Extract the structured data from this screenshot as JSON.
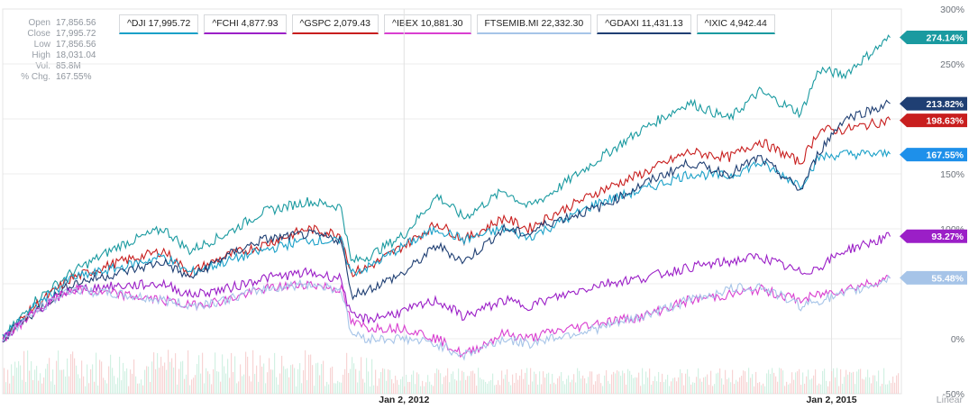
{
  "info_panel": {
    "rows": [
      {
        "label": "Open",
        "value": "17,856.56"
      },
      {
        "label": "Close",
        "value": "17,995.72"
      },
      {
        "label": "Low",
        "value": "17,856.56"
      },
      {
        "label": "High",
        "value": "18,031.04"
      },
      {
        "label": "Vol.",
        "value": "85.8M"
      },
      {
        "label": "% Chg.",
        "value": "167.55%"
      }
    ]
  },
  "legend": [
    {
      "label": "^DJI 17,995.72",
      "color": "#1aa0c8"
    },
    {
      "label": "^FCHI 4,877.93",
      "color": "#9b1fc7"
    },
    {
      "label": "^GSPC 2,079.43",
      "color": "#c81e1e"
    },
    {
      "label": "^IBEX 10,881.30",
      "color": "#d93fd0"
    },
    {
      "label": "FTSEMIB.MI 22,332.30",
      "color": "#a6c4e8"
    },
    {
      "label": "^GDAXI 11,431.13",
      "color": "#1f3f73"
    },
    {
      "label": "^IXIC 4,942.44",
      "color": "#1a9aa0"
    }
  ],
  "chart_data": {
    "type": "line",
    "y_axis_labels": [
      "300%",
      "250%",
      "150%",
      "100%",
      "0%",
      "-50%"
    ],
    "x_axis_labels": [
      "Jan 2, 2012",
      "Jan 2, 2015"
    ],
    "scale_label": "Linear",
    "ylim": [
      -50,
      300
    ],
    "x_range": [
      "2009-03-09",
      "2015-06-30"
    ],
    "grid": true,
    "series": [
      {
        "name": "^IXIC",
        "color": "#1a9aa0",
        "dates": [
          "2009-03-09",
          "2009-06-01",
          "2009-09-01",
          "2010-01-04",
          "2010-04-26",
          "2010-07-01",
          "2010-10-01",
          "2011-01-03",
          "2011-04-29",
          "2011-07-25",
          "2011-08-19",
          "2011-10-03",
          "2012-01-03",
          "2012-03-27",
          "2012-06-04",
          "2012-09-14",
          "2012-11-15",
          "2013-01-02",
          "2013-05-21",
          "2013-09-02",
          "2014-01-02",
          "2014-04-15",
          "2014-07-01",
          "2014-10-15",
          "2014-12-01",
          "2015-02-02",
          "2015-06-01"
        ],
        "values": [
          0,
          35,
          60,
          85,
          100,
          80,
          95,
          115,
          125,
          120,
          70,
          75,
          95,
          130,
          110,
          135,
          120,
          130,
          165,
          190,
          215,
          200,
          225,
          205,
          245,
          240,
          274
        ]
      },
      {
        "name": "^GSPC",
        "color": "#c81e1e",
        "dates": [
          "2009-03-09",
          "2009-06-01",
          "2009-09-01",
          "2010-01-04",
          "2010-04-26",
          "2010-07-01",
          "2010-10-01",
          "2011-01-03",
          "2011-04-29",
          "2011-07-25",
          "2011-08-19",
          "2011-10-03",
          "2012-01-03",
          "2012-03-27",
          "2012-06-04",
          "2012-09-14",
          "2012-11-15",
          "2013-01-02",
          "2013-05-21",
          "2013-09-02",
          "2014-01-02",
          "2014-04-15",
          "2014-07-01",
          "2014-10-15",
          "2014-12-01",
          "2015-02-02",
          "2015-06-01"
        ],
        "values": [
          0,
          30,
          55,
          70,
          80,
          60,
          75,
          85,
          100,
          95,
          60,
          65,
          85,
          105,
          90,
          110,
          100,
          110,
          135,
          150,
          170,
          165,
          180,
          160,
          190,
          190,
          199
        ]
      },
      {
        "name": "^DJI",
        "color": "#1aa0c8",
        "dates": [
          "2009-03-09",
          "2009-06-01",
          "2009-09-01",
          "2010-01-04",
          "2010-04-26",
          "2010-07-01",
          "2010-10-01",
          "2011-01-03",
          "2011-04-29",
          "2011-07-25",
          "2011-08-19",
          "2011-10-03",
          "2012-01-03",
          "2012-03-27",
          "2012-06-04",
          "2012-09-14",
          "2012-11-15",
          "2013-01-02",
          "2013-05-21",
          "2013-09-02",
          "2014-01-02",
          "2014-04-15",
          "2014-07-01",
          "2014-10-15",
          "2014-12-01",
          "2015-02-02",
          "2015-06-01"
        ],
        "values": [
          0,
          30,
          55,
          65,
          75,
          60,
          70,
          80,
          90,
          88,
          60,
          65,
          85,
          100,
          90,
          100,
          92,
          100,
          125,
          135,
          150,
          148,
          160,
          140,
          165,
          168,
          168
        ]
      },
      {
        "name": "^GDAXI",
        "color": "#1f3f73",
        "dates": [
          "2009-03-09",
          "2009-06-01",
          "2009-09-01",
          "2010-01-04",
          "2010-04-26",
          "2010-07-01",
          "2010-10-01",
          "2011-01-03",
          "2011-04-29",
          "2011-07-25",
          "2011-08-19",
          "2011-10-03",
          "2012-01-03",
          "2012-03-27",
          "2012-06-04",
          "2012-09-14",
          "2012-11-15",
          "2013-01-02",
          "2013-05-21",
          "2013-09-02",
          "2014-01-02",
          "2014-04-15",
          "2014-07-01",
          "2014-10-15",
          "2014-12-01",
          "2015-02-02",
          "2015-06-01"
        ],
        "values": [
          0,
          25,
          50,
          60,
          70,
          55,
          75,
          90,
          95,
          90,
          40,
          45,
          60,
          85,
          70,
          100,
          95,
          105,
          120,
          140,
          160,
          150,
          165,
          135,
          170,
          200,
          214
        ]
      },
      {
        "name": "^FCHI",
        "color": "#9b1fc7",
        "dates": [
          "2009-03-09",
          "2009-06-01",
          "2009-09-01",
          "2010-01-04",
          "2010-04-26",
          "2010-07-01",
          "2010-10-01",
          "2011-01-03",
          "2011-04-29",
          "2011-07-25",
          "2011-08-19",
          "2011-10-03",
          "2012-01-03",
          "2012-03-27",
          "2012-06-04",
          "2012-09-14",
          "2012-11-15",
          "2013-01-02",
          "2013-05-21",
          "2013-09-02",
          "2014-01-02",
          "2014-04-15",
          "2014-07-01",
          "2014-10-15",
          "2014-12-01",
          "2015-02-02",
          "2015-06-01"
        ],
        "values": [
          0,
          25,
          45,
          48,
          50,
          40,
          45,
          55,
          60,
          55,
          20,
          18,
          25,
          35,
          20,
          35,
          30,
          35,
          50,
          55,
          65,
          70,
          75,
          60,
          65,
          80,
          93
        ]
      },
      {
        "name": "^IBEX",
        "color": "#d93fd0",
        "dates": [
          "2009-03-09",
          "2009-06-01",
          "2009-09-01",
          "2010-01-04",
          "2010-04-26",
          "2010-07-01",
          "2010-10-01",
          "2011-01-03",
          "2011-04-29",
          "2011-07-25",
          "2011-08-19",
          "2011-10-03",
          "2012-01-03",
          "2012-03-27",
          "2012-06-04",
          "2012-09-14",
          "2012-11-15",
          "2013-01-02",
          "2013-05-21",
          "2013-09-02",
          "2014-01-02",
          "2014-04-15",
          "2014-07-01",
          "2014-10-15",
          "2014-12-01",
          "2015-02-02",
          "2015-06-01"
        ],
        "values": [
          0,
          25,
          45,
          40,
          35,
          30,
          35,
          45,
          50,
          45,
          15,
          10,
          10,
          0,
          -15,
          5,
          0,
          5,
          15,
          20,
          35,
          40,
          45,
          35,
          40,
          45,
          55
        ]
      },
      {
        "name": "FTSEMIB.MI",
        "color": "#a6c4e8",
        "dates": [
          "2009-03-09",
          "2009-06-01",
          "2009-09-01",
          "2010-01-04",
          "2010-04-26",
          "2010-07-01",
          "2010-10-01",
          "2011-01-03",
          "2011-04-29",
          "2011-07-25",
          "2011-08-19",
          "2011-10-03",
          "2012-01-03",
          "2012-03-27",
          "2012-06-04",
          "2012-09-14",
          "2012-11-15",
          "2013-01-02",
          "2013-05-21",
          "2013-09-02",
          "2014-01-02",
          "2014-04-15",
          "2014-07-01",
          "2014-10-15",
          "2014-12-01",
          "2015-02-02",
          "2015-06-01"
        ],
        "values": [
          0,
          25,
          45,
          40,
          35,
          30,
          35,
          45,
          50,
          45,
          5,
          0,
          0,
          -5,
          -15,
          0,
          -5,
          0,
          10,
          20,
          35,
          45,
          48,
          30,
          35,
          40,
          55
        ]
      }
    ],
    "end_labels": [
      {
        "text": "274.14%",
        "value": 274.14,
        "color": "#1a9aa0"
      },
      {
        "text": "213.82%",
        "value": 213.82,
        "color": "#1f3f73"
      },
      {
        "text": "198.63%",
        "value": 198.63,
        "color": "#c81e1e"
      },
      {
        "text": "167.55%",
        "value": 167.55,
        "color": "#1e90ea"
      },
      {
        "text": "93.27%",
        "value": 93.27,
        "color": "#9b1fc7"
      },
      {
        "text": "55.48%",
        "value": 55.48,
        "color": "#a6c4e8"
      }
    ]
  }
}
